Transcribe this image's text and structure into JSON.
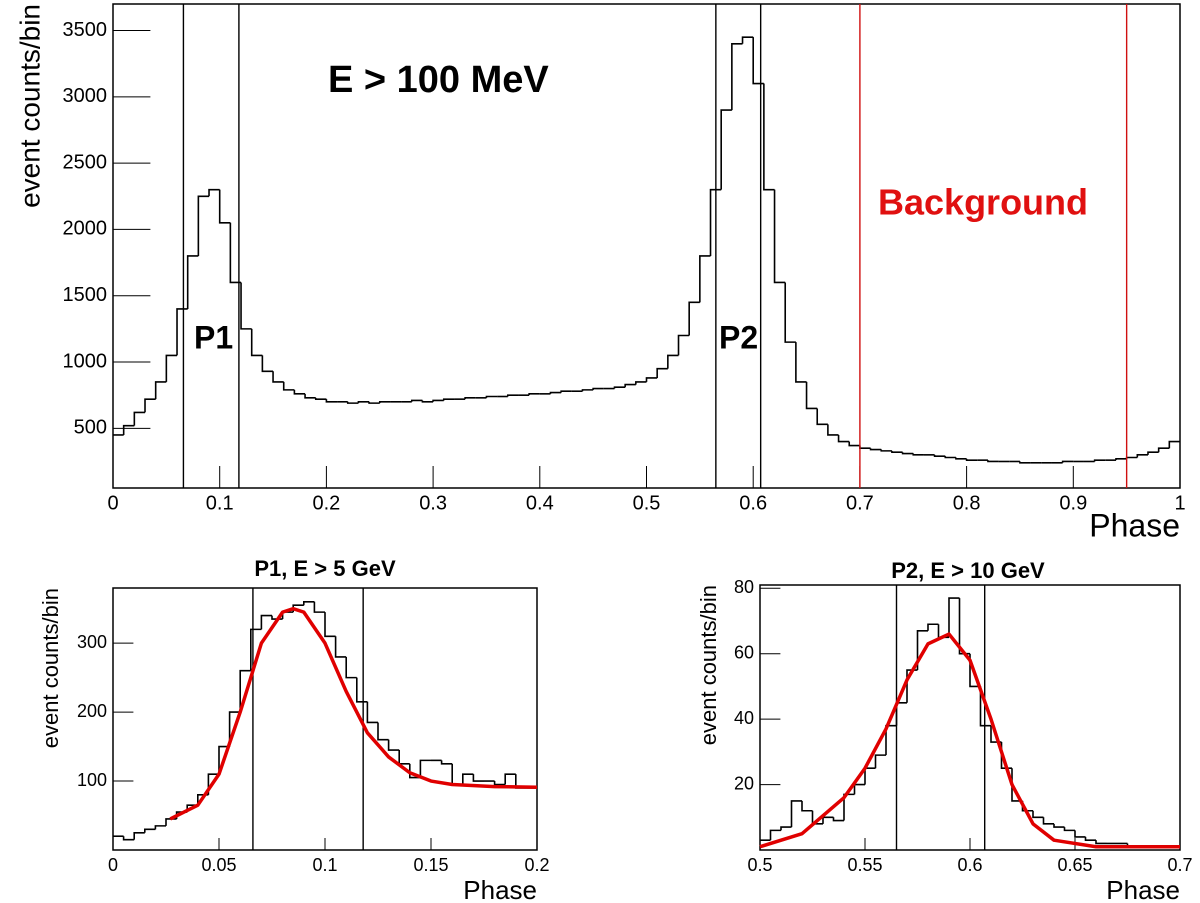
{
  "chart_data": [
    {
      "type": "histogram",
      "ylabel": "event counts/bin",
      "xlabel": "Phase",
      "color": "#000000",
      "bins": [
        0,
        0.01,
        0.02,
        0.03,
        0.04,
        0.05,
        0.06,
        0.07,
        0.08,
        0.09,
        0.1,
        0.11,
        0.12,
        0.13,
        0.14,
        0.15,
        0.16,
        0.17,
        0.18,
        0.19,
        0.2,
        0.21,
        0.22,
        0.23,
        0.24,
        0.25,
        0.26,
        0.27,
        0.28,
        0.29,
        0.3,
        0.31,
        0.32,
        0.33,
        0.34,
        0.35,
        0.36,
        0.37,
        0.38,
        0.39,
        0.4,
        0.41,
        0.42,
        0.43,
        0.44,
        0.45,
        0.46,
        0.47,
        0.48,
        0.49,
        0.5,
        0.51,
        0.52,
        0.53,
        0.54,
        0.55,
        0.56,
        0.57,
        0.58,
        0.59,
        0.6,
        0.61,
        0.62,
        0.63,
        0.64,
        0.65,
        0.66,
        0.67,
        0.68,
        0.69,
        0.7,
        0.71,
        0.72,
        0.73,
        0.74,
        0.75,
        0.76,
        0.77,
        0.78,
        0.79,
        0.8,
        0.81,
        0.82,
        0.83,
        0.84,
        0.85,
        0.86,
        0.87,
        0.88,
        0.89,
        0.9,
        0.91,
        0.92,
        0.93,
        0.94,
        0.95,
        0.96,
        0.97,
        0.98,
        0.99,
        1
      ],
      "values": [
        450,
        520,
        620,
        720,
        850,
        1050,
        1400,
        1800,
        2250,
        2300,
        2050,
        1600,
        1250,
        1050,
        930,
        850,
        790,
        760,
        730,
        720,
        700,
        700,
        690,
        700,
        690,
        700,
        700,
        700,
        710,
        700,
        710,
        720,
        720,
        730,
        730,
        740,
        740,
        750,
        750,
        760,
        760,
        770,
        780,
        780,
        790,
        800,
        800,
        810,
        830,
        850,
        880,
        950,
        1050,
        1200,
        1450,
        1800,
        2300,
        2900,
        3400,
        3450,
        3100,
        2300,
        1600,
        1150,
        850,
        650,
        530,
        450,
        400,
        370,
        350,
        340,
        330,
        320,
        310,
        300,
        300,
        290,
        280,
        270,
        260,
        260,
        250,
        250,
        250,
        240,
        240,
        240,
        240,
        250,
        250,
        250,
        260,
        260,
        270,
        280,
        300,
        320,
        350,
        400
      ],
      "xlim": [
        0,
        1
      ],
      "ylim": [
        50,
        3700
      ],
      "xticks": [
        0,
        0.1,
        0.2,
        0.3,
        0.4,
        0.5,
        0.6,
        0.7,
        0.8,
        0.9,
        1
      ],
      "yticks": [
        500,
        1000,
        1500,
        2000,
        2500,
        3000,
        3500
      ],
      "vlines": [
        {
          "value": 0.066,
          "color": "#000000"
        },
        {
          "value": 0.118,
          "color": "#000000"
        },
        {
          "value": 0.565,
          "color": "#000000"
        },
        {
          "value": 0.607,
          "color": "#000000"
        },
        {
          "value": 0.7,
          "color": "#d01010"
        },
        {
          "value": 0.95,
          "color": "#d01010"
        }
      ],
      "annotations": [
        {
          "text": "E > 100 MeV",
          "color": "#000000"
        },
        {
          "text": "P1",
          "color": "#000000"
        },
        {
          "text": "P2",
          "color": "#000000"
        },
        {
          "text": "Background",
          "color": "#e01010"
        }
      ]
    },
    {
      "type": "histogram",
      "title": "P1, E > 5 GeV",
      "ylabel": "event counts/bin",
      "xlabel": "Phase",
      "color": "#000000",
      "bins": [
        0,
        0.005,
        0.01,
        0.015,
        0.02,
        0.025,
        0.03,
        0.035,
        0.04,
        0.045,
        0.05,
        0.055,
        0.06,
        0.065,
        0.07,
        0.075,
        0.08,
        0.085,
        0.09,
        0.095,
        0.1,
        0.105,
        0.11,
        0.115,
        0.12,
        0.125,
        0.13,
        0.135,
        0.14,
        0.145,
        0.15,
        0.155,
        0.16,
        0.165,
        0.17,
        0.175,
        0.18,
        0.185,
        0.19,
        0.195,
        0.2
      ],
      "values": [
        20,
        15,
        25,
        30,
        35,
        45,
        55,
        65,
        80,
        110,
        150,
        200,
        260,
        320,
        340,
        335,
        345,
        355,
        360,
        345,
        310,
        280,
        250,
        215,
        185,
        160,
        145,
        125,
        105,
        130,
        130,
        125,
        95,
        110,
        100,
        100,
        95,
        110,
        90,
        90
      ],
      "xlim": [
        0,
        0.2
      ],
      "ylim": [
        0,
        380
      ],
      "xticks": [
        0,
        0.05,
        0.1,
        0.15,
        0.2
      ],
      "yticks": [
        100,
        200,
        300
      ],
      "vlines": [
        {
          "value": 0.066,
          "color": "#000000"
        },
        {
          "value": 0.118,
          "color": "#000000"
        }
      ],
      "fit": {
        "color": "#e00000",
        "x": [
          0.027,
          0.04,
          0.05,
          0.06,
          0.07,
          0.08,
          0.085,
          0.09,
          0.1,
          0.11,
          0.12,
          0.13,
          0.14,
          0.15,
          0.16,
          0.18,
          0.2
        ],
        "values": [
          45,
          65,
          110,
          200,
          300,
          345,
          350,
          345,
          300,
          230,
          170,
          135,
          112,
          100,
          95,
          92,
          91
        ]
      }
    },
    {
      "type": "histogram",
      "title": "P2, E > 10 GeV",
      "ylabel": "event counts/bin",
      "xlabel": "Phase",
      "color": "#000000",
      "bins": [
        0.5,
        0.505,
        0.51,
        0.515,
        0.52,
        0.525,
        0.53,
        0.535,
        0.54,
        0.545,
        0.55,
        0.555,
        0.56,
        0.565,
        0.57,
        0.575,
        0.58,
        0.585,
        0.59,
        0.595,
        0.6,
        0.605,
        0.61,
        0.615,
        0.62,
        0.625,
        0.63,
        0.635,
        0.64,
        0.645,
        0.65,
        0.655,
        0.66,
        0.665,
        0.67,
        0.675,
        0.68,
        0.685,
        0.69,
        0.695,
        0.7
      ],
      "values": [
        3,
        6,
        7,
        15,
        12,
        8,
        10,
        9,
        17,
        20,
        25,
        29,
        38,
        45,
        55,
        67,
        69,
        65,
        77,
        60,
        50,
        38,
        33,
        25,
        15,
        12,
        10,
        8,
        7,
        6,
        4,
        3,
        2,
        2,
        2,
        1,
        1,
        1,
        1,
        1
      ],
      "xlim": [
        0.5,
        0.7
      ],
      "ylim": [
        0,
        81
      ],
      "xticks": [
        0.5,
        0.55,
        0.6,
        0.65,
        0.7
      ],
      "yticks": [
        20,
        40,
        60,
        80
      ],
      "vlines": [
        {
          "value": 0.565,
          "color": "#000000"
        },
        {
          "value": 0.607,
          "color": "#000000"
        }
      ],
      "fit": {
        "color": "#e00000",
        "x": [
          0.5,
          0.52,
          0.54,
          0.55,
          0.56,
          0.57,
          0.58,
          0.59,
          0.6,
          0.61,
          0.62,
          0.63,
          0.64,
          0.66,
          0.7
        ],
        "values": [
          1,
          5,
          16,
          25,
          37,
          52,
          63,
          66,
          58,
          40,
          20,
          8,
          3,
          1,
          1
        ]
      }
    }
  ]
}
